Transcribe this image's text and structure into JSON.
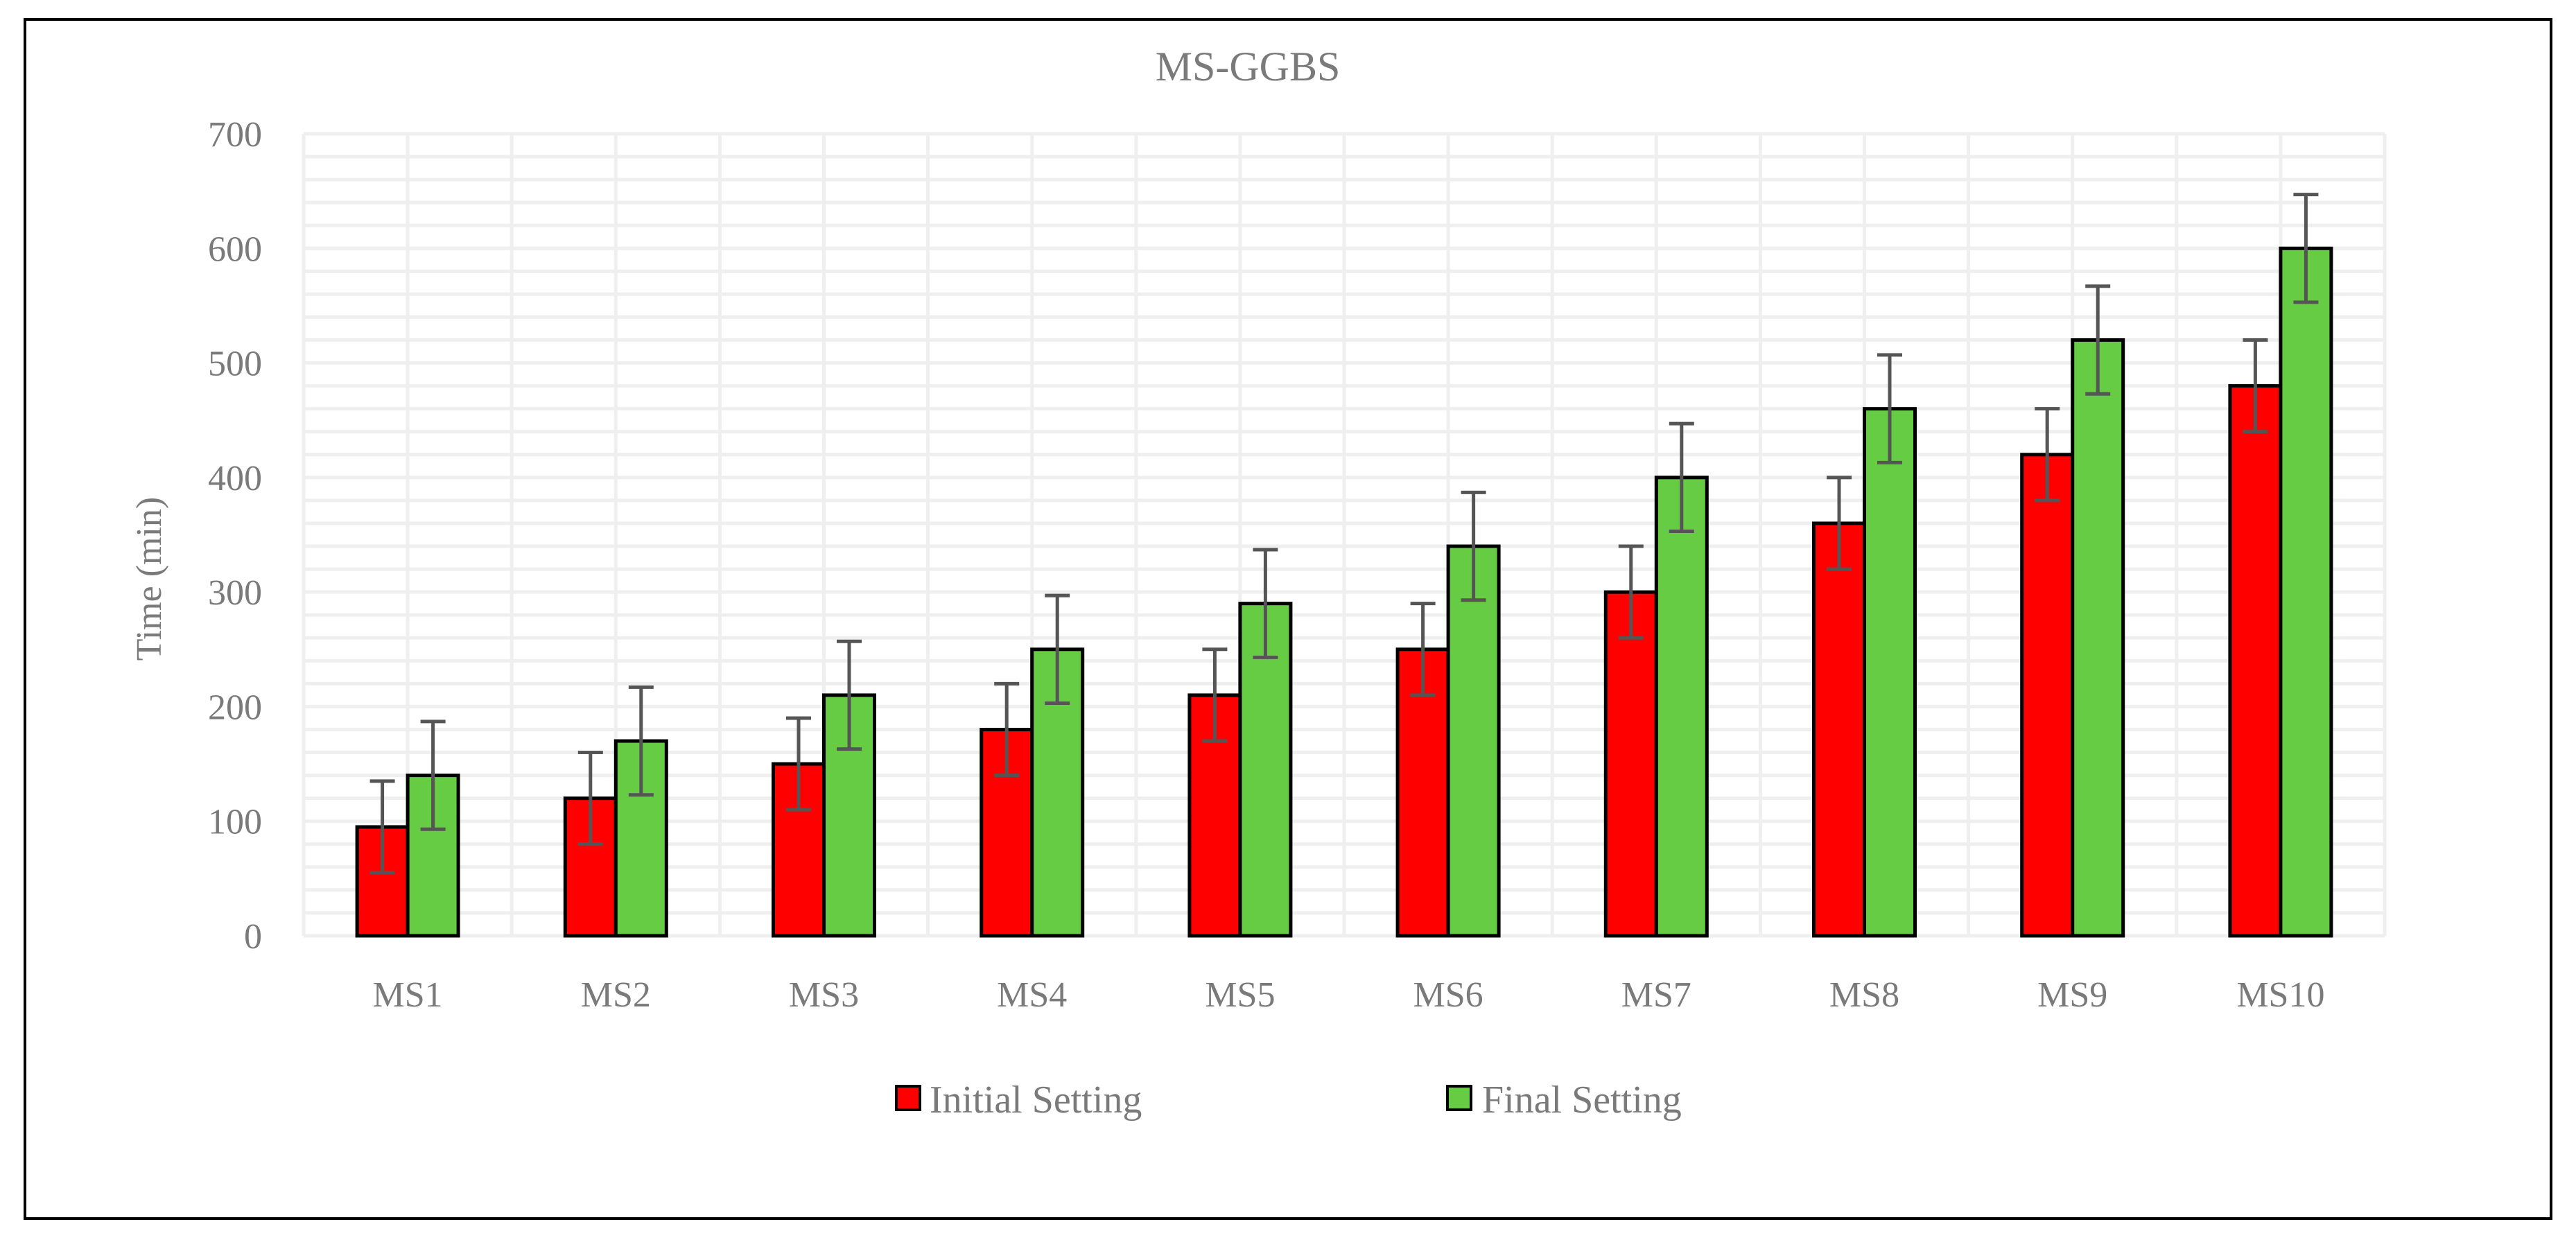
{
  "chart_data": {
    "type": "bar",
    "title": "MS-GGBS",
    "xlabel": "",
    "ylabel": "Time (min)",
    "ylim": [
      0,
      700
    ],
    "yticks": [
      0,
      100,
      200,
      300,
      400,
      500,
      600,
      700
    ],
    "categories": [
      "MS1",
      "MS2",
      "MS3",
      "MS4",
      "MS5",
      "MS6",
      "MS7",
      "MS8",
      "MS9",
      "MS10"
    ],
    "series": [
      {
        "name": "Initial Setting",
        "color": "#ff0000",
        "values": [
          95,
          120,
          150,
          180,
          210,
          250,
          300,
          360,
          420,
          480
        ],
        "error": [
          40,
          40,
          40,
          40,
          40,
          40,
          40,
          40,
          40,
          40
        ]
      },
      {
        "name": "Final Setting",
        "color": "#66cc44",
        "values": [
          140,
          170,
          210,
          250,
          290,
          340,
          400,
          460,
          520,
          600
        ],
        "error": [
          47,
          47,
          47,
          47,
          47,
          47,
          47,
          47,
          47,
          47
        ]
      }
    ],
    "grid": true,
    "legend": "bottom",
    "border_color": "#000000",
    "gridline_color": "#efefef",
    "text_color": "#7a7a7a",
    "errorbar_color": "#555555"
  }
}
